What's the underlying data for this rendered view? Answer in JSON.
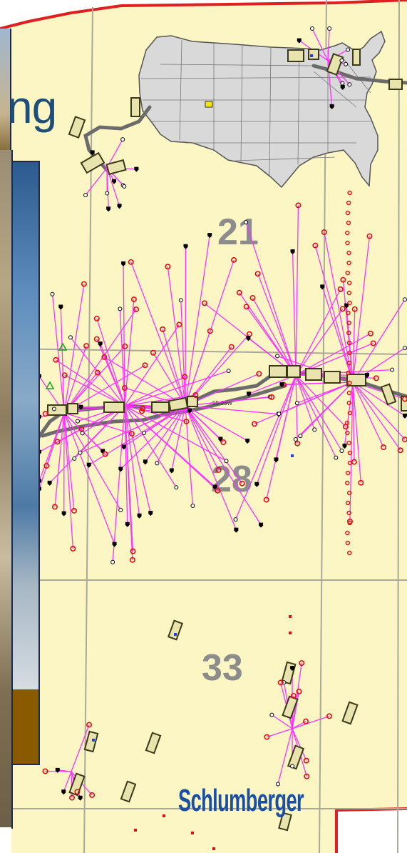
{
  "slide_title_fragment": "ng",
  "map": {
    "section_labels": [
      "21",
      "28",
      "33"
    ],
    "road_label": "55-93W",
    "us_inset": {
      "marker": "yellow-square"
    }
  },
  "logo_text": "Schlumberger",
  "colors": {
    "map_background": "#fbf6c3",
    "well_path": "#ff33ff",
    "road": "#6b6b6b",
    "pad_outline": "#3a3a1a",
    "pad_fill": "#e9e3ad",
    "section_line": "#a9a99a",
    "boundary": "#e02020",
    "logo": "#1a4fa3",
    "title": "#1f4e79",
    "panel_border": "#1b2a55",
    "panel_brown": "#8a5a00"
  }
}
